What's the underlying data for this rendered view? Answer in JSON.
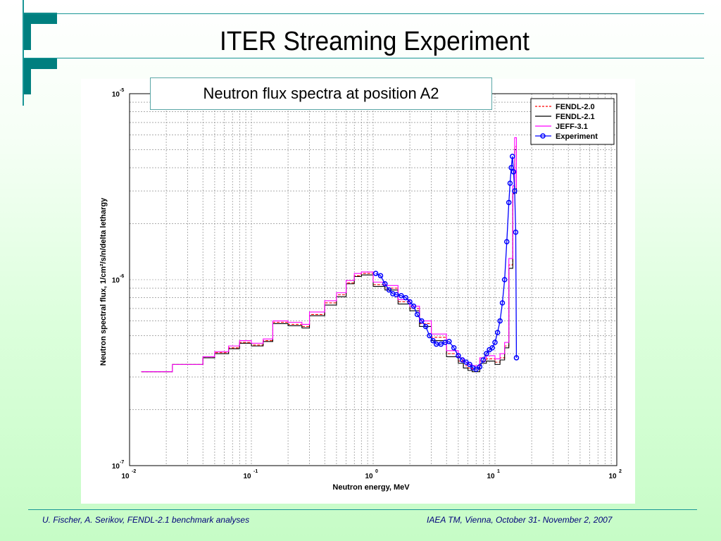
{
  "slide": {
    "title": "ITER Streaming Experiment",
    "subtitle": "Neutron flux spectra at position A2",
    "footer_left": "U. Fischer, A. Serikov, FENDL-2.1 benchmark analyses",
    "footer_right": "IAEA TM, Vienna, October 31- November 2, 2007",
    "accent_color": "#007f7f",
    "line_color": "#1a9696"
  },
  "chart_data": {
    "type": "line",
    "xlabel": "Neutron energy, MeV",
    "ylabel": "Neutron spectral flux, 1/cm²/s/n/delta lethargy",
    "xscale": "log",
    "yscale": "log",
    "xlim": [
      0.01,
      100
    ],
    "ylim": [
      1e-07,
      1e-05
    ],
    "grid": true,
    "legend_position": "top-right",
    "x_ticks": [
      {
        "base": "10",
        "exp": "-2"
      },
      {
        "base": "10",
        "exp": "-1"
      },
      {
        "base": "10",
        "exp": "0"
      },
      {
        "base": "10",
        "exp": "1"
      },
      {
        "base": "10",
        "exp": "2"
      }
    ],
    "y_ticks": [
      {
        "base": "10",
        "exp": "-7"
      },
      {
        "base": "10",
        "exp": "-6"
      },
      {
        "base": "10",
        "exp": "-5"
      }
    ],
    "series": [
      {
        "name": "FENDL-2.0",
        "color": "#ff0000",
        "style": "dashed",
        "marker": "none",
        "step": true,
        "x": [
          0.0125,
          0.0225,
          0.04,
          0.05,
          0.065,
          0.08,
          0.1,
          0.125,
          0.15,
          0.2,
          0.26,
          0.3,
          0.4,
          0.5,
          0.6,
          0.7,
          0.8,
          1.0,
          1.25,
          1.6,
          2.0,
          2.4,
          3.0,
          4.0,
          5.0,
          5.5,
          6.0,
          6.5,
          7.5,
          8.5,
          10.0,
          11.0,
          12.0,
          13.0,
          14.0,
          14.5,
          15.0
        ],
        "y": [
          3.2e-07,
          3.5e-07,
          3.8e-07,
          4.05e-07,
          4.3e-07,
          4.6e-07,
          4.45e-07,
          4.7e-07,
          5.9e-07,
          5.75e-07,
          5.6e-07,
          6.5e-07,
          7.5e-07,
          8.3e-07,
          9.6e-07,
          1.05e-06,
          1.08e-06,
          9.4e-07,
          9e-07,
          7.6e-07,
          7e-07,
          5.8e-07,
          4.9e-07,
          4e-07,
          3.65e-07,
          3.45e-07,
          3.35e-07,
          3.3e-07,
          3.65e-07,
          3.75e-07,
          3.6e-07,
          3.8e-07,
          4.4e-07,
          1.2e-06,
          3e-06,
          5.2e-06,
          3e-06
        ]
      },
      {
        "name": "FENDL-2.1",
        "color": "#000000",
        "style": "solid",
        "marker": "none",
        "step": true,
        "x": [
          0.0125,
          0.0225,
          0.04,
          0.05,
          0.065,
          0.08,
          0.1,
          0.125,
          0.15,
          0.2,
          0.26,
          0.3,
          0.4,
          0.5,
          0.6,
          0.7,
          0.8,
          1.0,
          1.25,
          1.6,
          2.0,
          2.4,
          3.0,
          4.0,
          5.0,
          5.5,
          6.0,
          6.5,
          7.5,
          8.5,
          10.0,
          11.0,
          12.0,
          13.0,
          14.0,
          14.5,
          15.0
        ],
        "y": [
          3.2e-07,
          3.5e-07,
          3.8e-07,
          4e-07,
          4.25e-07,
          4.55e-07,
          4.4e-07,
          4.65e-07,
          5.8e-07,
          5.65e-07,
          5.5e-07,
          6.4e-07,
          7.3e-07,
          8.1e-07,
          9.5e-07,
          1.04e-06,
          1.06e-06,
          9.2e-07,
          8.8e-07,
          7.4e-07,
          6.8e-07,
          5.6e-07,
          4.7e-07,
          3.85e-07,
          3.55e-07,
          3.35e-07,
          3.25e-07,
          3.2e-07,
          3.55e-07,
          3.65e-07,
          3.5e-07,
          3.7e-07,
          4.3e-07,
          1.15e-06,
          2.9e-06,
          5e-06,
          2.9e-06
        ]
      },
      {
        "name": "JEFF-3.1",
        "color": "#ff00ff",
        "style": "solid",
        "marker": "none",
        "step": true,
        "x": [
          0.0125,
          0.0225,
          0.04,
          0.05,
          0.065,
          0.08,
          0.1,
          0.125,
          0.15,
          0.2,
          0.26,
          0.3,
          0.4,
          0.5,
          0.6,
          0.7,
          0.8,
          1.0,
          1.25,
          1.6,
          2.0,
          2.4,
          3.0,
          4.0,
          5.0,
          5.5,
          6.0,
          6.5,
          7.5,
          8.5,
          10.0,
          11.0,
          12.0,
          13.0,
          14.0,
          14.5,
          15.0
        ],
        "y": [
          3.2e-07,
          3.5e-07,
          3.85e-07,
          4.1e-07,
          4.4e-07,
          4.7e-07,
          4.55e-07,
          4.8e-07,
          6e-07,
          5.9e-07,
          5.75e-07,
          6.7e-07,
          7.7e-07,
          8.5e-07,
          9.9e-07,
          1.08e-06,
          1.1e-06,
          9.7e-07,
          9.3e-07,
          7.8e-07,
          7.2e-07,
          6e-07,
          5.1e-07,
          4.15e-07,
          3.8e-07,
          3.6e-07,
          3.5e-07,
          3.45e-07,
          3.8e-07,
          3.9e-07,
          3.75e-07,
          4e-07,
          4.6e-07,
          1.3e-06,
          3.2e-06,
          5.8e-06,
          3.1e-06
        ]
      },
      {
        "name": "Experiment",
        "color": "#0000ff",
        "style": "solid",
        "marker": "circle",
        "step": false,
        "x": [
          1.05,
          1.15,
          1.25,
          1.35,
          1.45,
          1.55,
          1.7,
          1.85,
          2.0,
          2.15,
          2.3,
          2.5,
          2.7,
          2.9,
          3.1,
          3.3,
          3.6,
          3.9,
          4.2,
          4.6,
          5.0,
          5.4,
          5.8,
          6.2,
          6.6,
          7.0,
          7.5,
          8.0,
          8.5,
          9.0,
          9.5,
          10.0,
          10.5,
          11.0,
          11.5,
          12.0,
          12.5,
          13.0,
          13.3,
          13.6,
          13.9,
          14.2,
          14.5,
          14.8,
          15.0
        ],
        "y": [
          1.08e-06,
          1.05e-06,
          9.5e-07,
          8.8e-07,
          8.4e-07,
          8.3e-07,
          8.2e-07,
          8e-07,
          7.6e-07,
          7.2e-07,
          6.5e-07,
          6e-07,
          5.6e-07,
          5e-07,
          4.7e-07,
          4.5e-07,
          4.5e-07,
          4.6e-07,
          4.65e-07,
          4.3e-07,
          3.9e-07,
          3.7e-07,
          3.6e-07,
          3.5e-07,
          3.35e-07,
          3.3e-07,
          3.4e-07,
          3.7e-07,
          4e-07,
          4.2e-07,
          4.3e-07,
          4.6e-07,
          5.2e-07,
          6e-07,
          7.5e-07,
          1e-06,
          1.6e-06,
          2.6e-06,
          3.3e-06,
          4e-06,
          4.6e-06,
          3.8e-06,
          3e-06,
          1.8e-06,
          3.8e-07
        ]
      }
    ]
  }
}
